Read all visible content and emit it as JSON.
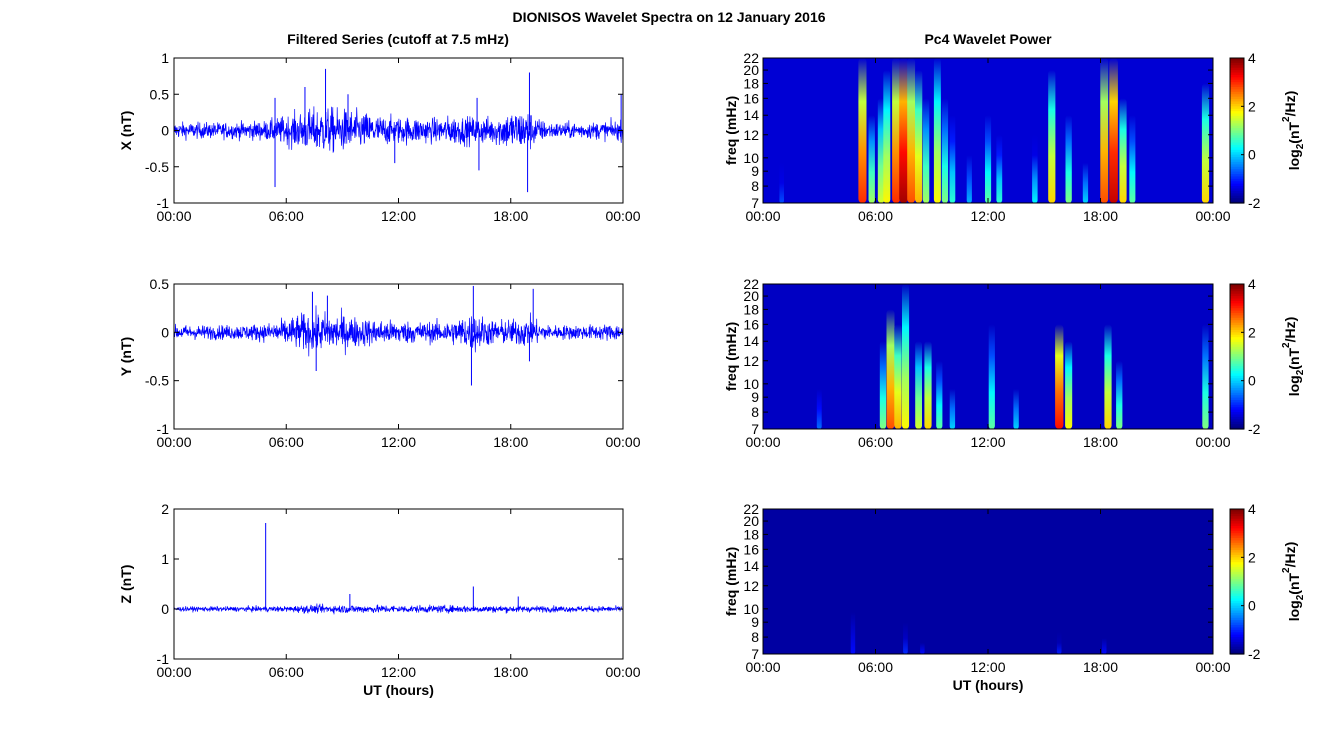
{
  "figure": {
    "suptitle": "DIONISOS Wavelet Spectra on 12 January 2016",
    "left_title": "Filtered Series (cutoff at 7.5 mHz)",
    "right_title": "Pc4 Wavelet Power",
    "xlabel": "UT (hours)",
    "freq_label": "freq (mHz)",
    "colorbar_label": "log2(nT2/Hz)"
  },
  "chart_data": [
    {
      "type": "line",
      "title": "Filtered Series (cutoff at 7.5 mHz)",
      "xlabel": "",
      "ylabel": "X (nT)",
      "xlim": [
        0,
        24
      ],
      "ylim": [
        -1,
        1
      ],
      "xticks": [
        "00:00",
        "06:00",
        "12:00",
        "18:00",
        "00:00"
      ],
      "yticks": [
        "1",
        "0.5",
        "0",
        "-0.5",
        "-1"
      ],
      "color": "#0000ff",
      "envelope_x": [
        0,
        3,
        5,
        6,
        7,
        8,
        9,
        10,
        11,
        12,
        13,
        14,
        15,
        16,
        17,
        18,
        19,
        19.5,
        20,
        22,
        24
      ],
      "envelope_y": [
        0.12,
        0.12,
        0.15,
        0.22,
        0.3,
        0.35,
        0.32,
        0.28,
        0.22,
        0.2,
        0.2,
        0.18,
        0.22,
        0.2,
        0.2,
        0.3,
        0.3,
        0.18,
        0.12,
        0.12,
        0.15
      ],
      "spikes": [
        {
          "x": 5.4,
          "y": -0.78
        },
        {
          "x": 5.4,
          "y": 0.45
        },
        {
          "x": 7.0,
          "y": 0.6
        },
        {
          "x": 8.1,
          "y": 0.85
        },
        {
          "x": 9.3,
          "y": 0.5
        },
        {
          "x": 11.8,
          "y": -0.45
        },
        {
          "x": 16.2,
          "y": 0.45
        },
        {
          "x": 16.3,
          "y": -0.55
        },
        {
          "x": 18.9,
          "y": -0.85
        },
        {
          "x": 19.0,
          "y": 0.8
        },
        {
          "x": 23.9,
          "y": 0.5
        }
      ]
    },
    {
      "type": "line",
      "xlabel": "",
      "ylabel": "Y (nT)",
      "xlim": [
        0,
        24
      ],
      "ylim": [
        -1,
        0.5
      ],
      "xticks": [
        "00:00",
        "06:00",
        "12:00",
        "18:00",
        "00:00"
      ],
      "yticks": [
        "0.5",
        "0",
        "-0.5",
        "-1"
      ],
      "color": "#0000ff",
      "envelope_x": [
        0,
        3,
        5,
        6,
        7,
        8,
        9,
        10,
        11,
        12,
        13,
        14,
        15,
        16,
        17,
        18,
        19,
        19.5,
        20,
        22,
        24
      ],
      "envelope_y": [
        0.08,
        0.08,
        0.1,
        0.15,
        0.22,
        0.22,
        0.2,
        0.16,
        0.14,
        0.13,
        0.12,
        0.12,
        0.14,
        0.22,
        0.14,
        0.14,
        0.18,
        0.12,
        0.08,
        0.08,
        0.1
      ],
      "spikes": [
        {
          "x": 7.4,
          "y": 0.42
        },
        {
          "x": 7.6,
          "y": -0.4
        },
        {
          "x": 8.2,
          "y": 0.38
        },
        {
          "x": 16.0,
          "y": 0.48
        },
        {
          "x": 15.9,
          "y": -0.55
        },
        {
          "x": 19.2,
          "y": 0.45
        },
        {
          "x": 19.0,
          "y": -0.3
        }
      ]
    },
    {
      "type": "line",
      "xlabel": "UT (hours)",
      "ylabel": "Z (nT)",
      "xlim": [
        0,
        24
      ],
      "ylim": [
        -1,
        2
      ],
      "xticks": [
        "00:00",
        "06:00",
        "12:00",
        "18:00",
        "00:00"
      ],
      "yticks": [
        "2",
        "1",
        "0",
        "-1"
      ],
      "color": "#0000ff",
      "envelope_x": [
        0,
        6,
        7,
        10,
        12,
        16,
        19,
        24
      ],
      "envelope_y": [
        0.05,
        0.06,
        0.09,
        0.09,
        0.08,
        0.08,
        0.07,
        0.06
      ],
      "spikes": [
        {
          "x": 4.9,
          "y": 1.72
        },
        {
          "x": 16.0,
          "y": 0.45
        },
        {
          "x": 18.4,
          "y": 0.25
        },
        {
          "x": 9.4,
          "y": 0.3
        }
      ]
    },
    {
      "type": "heatmap",
      "title": "Pc4 Wavelet Power",
      "xlabel": "",
      "ylabel": "freq (mHz)",
      "xlim": [
        0,
        24
      ],
      "ylim": [
        7,
        22
      ],
      "xticks": [
        "00:00",
        "06:00",
        "12:00",
        "18:00",
        "00:00"
      ],
      "yticks": [
        "22",
        "20",
        "18",
        "16",
        "14",
        "12",
        "10",
        "9",
        "8",
        "7"
      ],
      "colorbar": {
        "label": "log2(nT2/Hz)",
        "range": [
          -2,
          4
        ],
        "ticks": [
          "4",
          "2",
          "0",
          "-2"
        ]
      },
      "background": -1.5,
      "events": [
        {
          "t": 1.0,
          "p": -0.8,
          "f": 11
        },
        {
          "t": 5.3,
          "p": 3.0,
          "f": 22
        },
        {
          "t": 5.8,
          "p": 1.2,
          "f": 14
        },
        {
          "t": 6.3,
          "p": 1.5,
          "f": 16
        },
        {
          "t": 6.6,
          "p": 1.8,
          "f": 20
        },
        {
          "t": 7.1,
          "p": 3.0,
          "f": 22
        },
        {
          "t": 7.5,
          "p": 3.8,
          "f": 22
        },
        {
          "t": 7.9,
          "p": 2.8,
          "f": 22
        },
        {
          "t": 8.3,
          "p": 2.2,
          "f": 20
        },
        {
          "t": 8.7,
          "p": 1.2,
          "f": 16
        },
        {
          "t": 9.3,
          "p": 1.8,
          "f": 22
        },
        {
          "t": 9.7,
          "p": 1.0,
          "f": 16
        },
        {
          "t": 10.1,
          "p": 0.5,
          "f": 14
        },
        {
          "t": 11.0,
          "p": -0.2,
          "f": 12
        },
        {
          "t": 12.0,
          "p": 0.8,
          "f": 14
        },
        {
          "t": 12.6,
          "p": 0.5,
          "f": 12
        },
        {
          "t": 14.5,
          "p": 0.2,
          "f": 12
        },
        {
          "t": 15.4,
          "p": 2.0,
          "f": 20
        },
        {
          "t": 16.3,
          "p": 1.0,
          "f": 14
        },
        {
          "t": 17.2,
          "p": 0.0,
          "f": 11
        },
        {
          "t": 18.2,
          "p": 2.8,
          "f": 22
        },
        {
          "t": 18.7,
          "p": 3.6,
          "f": 22
        },
        {
          "t": 19.2,
          "p": 2.0,
          "f": 16
        },
        {
          "t": 19.7,
          "p": 0.8,
          "f": 14
        },
        {
          "t": 23.6,
          "p": 2.0,
          "f": 18
        }
      ]
    },
    {
      "type": "heatmap",
      "xlabel": "",
      "ylabel": "freq (mHz)",
      "xlim": [
        0,
        24
      ],
      "ylim": [
        7,
        22
      ],
      "xticks": [
        "00:00",
        "06:00",
        "12:00",
        "18:00",
        "00:00"
      ],
      "yticks": [
        "22",
        "20",
        "18",
        "16",
        "14",
        "12",
        "10",
        "9",
        "8",
        "7"
      ],
      "colorbar": {
        "label": "log2(nT2/Hz)",
        "range": [
          -2,
          4
        ],
        "ticks": [
          "4",
          "2",
          "0",
          "-2"
        ]
      },
      "background": -1.6,
      "events": [
        {
          "t": 3.0,
          "p": -0.6,
          "f": 11
        },
        {
          "t": 6.4,
          "p": 1.0,
          "f": 14
        },
        {
          "t": 6.8,
          "p": 2.8,
          "f": 18
        },
        {
          "t": 7.2,
          "p": 2.2,
          "f": 16
        },
        {
          "t": 7.6,
          "p": 1.8,
          "f": 22
        },
        {
          "t": 8.3,
          "p": 1.5,
          "f": 14
        },
        {
          "t": 8.8,
          "p": 2.0,
          "f": 14
        },
        {
          "t": 9.4,
          "p": 0.8,
          "f": 12
        },
        {
          "t": 10.1,
          "p": 0.0,
          "f": 11
        },
        {
          "t": 12.2,
          "p": 0.8,
          "f": 16
        },
        {
          "t": 13.5,
          "p": 0.0,
          "f": 11
        },
        {
          "t": 15.8,
          "p": 3.2,
          "f": 16
        },
        {
          "t": 16.3,
          "p": 1.8,
          "f": 14
        },
        {
          "t": 18.4,
          "p": 2.0,
          "f": 16
        },
        {
          "t": 19.0,
          "p": 1.0,
          "f": 12
        },
        {
          "t": 23.6,
          "p": 1.0,
          "f": 16
        }
      ]
    },
    {
      "type": "heatmap",
      "xlabel": "UT (hours)",
      "ylabel": "freq (mHz)",
      "xlim": [
        0,
        24
      ],
      "ylim": [
        7,
        22
      ],
      "xticks": [
        "00:00",
        "06:00",
        "12:00",
        "18:00",
        "00:00"
      ],
      "yticks": [
        "22",
        "20",
        "18",
        "16",
        "14",
        "12",
        "10",
        "9",
        "8",
        "7"
      ],
      "colorbar": {
        "label": "log2(nT2/Hz)",
        "range": [
          -2,
          4
        ],
        "ticks": [
          "4",
          "2",
          "0",
          "-2"
        ]
      },
      "background": -1.8,
      "events": [
        {
          "t": 4.8,
          "p": -1.2,
          "f": 18
        },
        {
          "t": 7.6,
          "p": -1.0,
          "f": 10
        },
        {
          "t": 8.5,
          "p": -1.2,
          "f": 9
        },
        {
          "t": 15.8,
          "p": -1.1,
          "f": 9
        },
        {
          "t": 18.2,
          "p": -1.2,
          "f": 10
        }
      ]
    }
  ]
}
